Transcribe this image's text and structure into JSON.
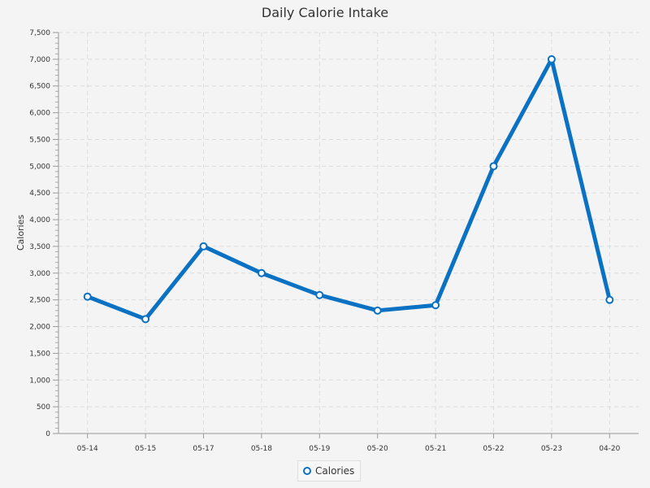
{
  "chart_data": {
    "type": "line",
    "title": "Daily Calorie Intake",
    "xlabel": "",
    "ylabel": "Calories",
    "categories": [
      "05-14",
      "05-15",
      "05-17",
      "05-18",
      "05-19",
      "05-20",
      "05-21",
      "05-22",
      "05-23",
      "04-20"
    ],
    "series": [
      {
        "name": "Calories",
        "values": [
          2560,
          2140,
          3500,
          3000,
          2590,
          2300,
          2400,
          5000,
          7000,
          2500
        ]
      }
    ],
    "ylim": [
      0,
      7500
    ],
    "y_major_step": 500,
    "y_minor_step": 100,
    "grid": true,
    "legend": "bottom-center",
    "color": "#0a71c3"
  }
}
